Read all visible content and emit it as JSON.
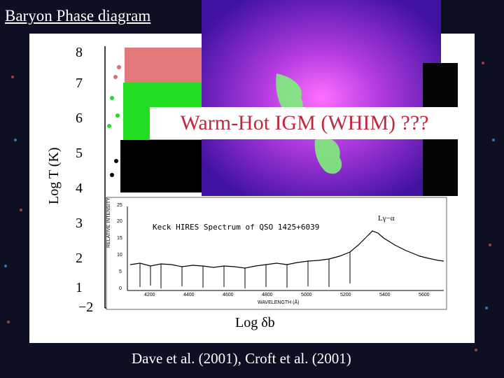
{
  "title": "Baryon Phase diagram",
  "banner": "Warm-Hot IGM (WHIM) ???",
  "caption": "Dave et al. (2001), Croft et al. (2001)",
  "phase_plot": {
    "ylabel": "Log T (K)",
    "xlabel": "Log δb",
    "yticks": [
      "1",
      "2",
      "3",
      "4",
      "5",
      "6",
      "7",
      "8"
    ],
    "xticks": [
      "−2"
    ]
  },
  "spectrum": {
    "title": "Keck HIRES Spectrum of QSO 1425+6039",
    "line_label": "Lγ−α",
    "ylabel": "RELATIVE INTENSITY",
    "xlabel": "WAVELENGTH (Å)",
    "yticks": [
      "0",
      "5",
      "10",
      "15",
      "20",
      "25"
    ],
    "xticks": [
      "4200",
      "4400",
      "4600",
      "4800",
      "5000",
      "5200",
      "5400",
      "5600"
    ]
  },
  "colors": {
    "hot_gas": "#e06a6a",
    "warm_gas": "#22dd22",
    "cool_gas": "#000000",
    "banner_text": "#c0283c",
    "xray_image": "#7a22c8"
  }
}
